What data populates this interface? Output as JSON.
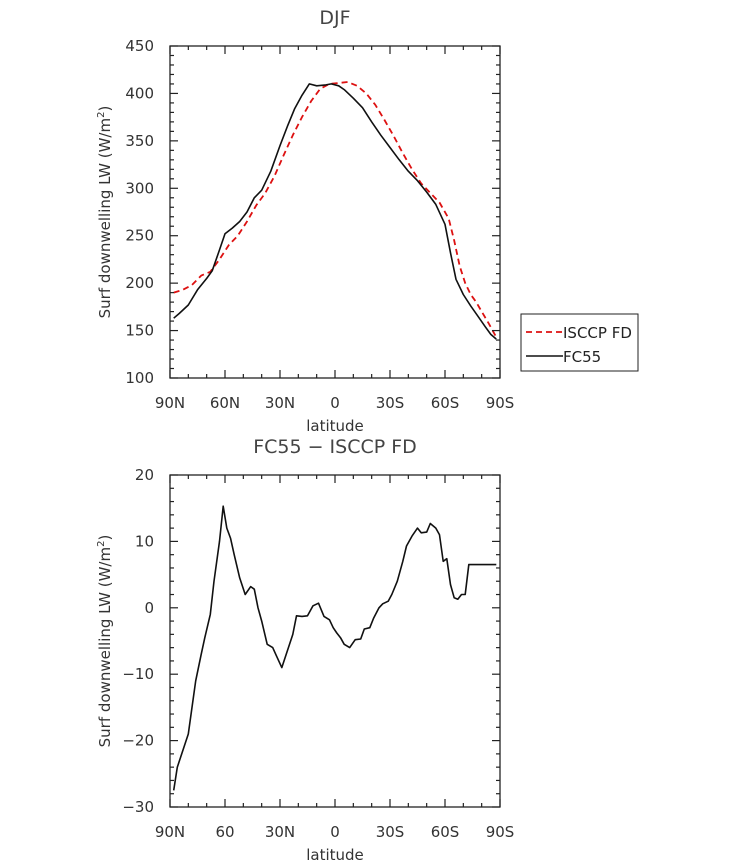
{
  "chart_data": [
    {
      "type": "line",
      "title": "DJF",
      "xlabel": "latitude",
      "ylabel": "Surf downwelling LW (W/m",
      "ylabel_sup": "2",
      "ylabel_close": ")",
      "xlim": [
        90,
        -90
      ],
      "ylim": [
        100,
        450
      ],
      "xticks": [
        90,
        60,
        30,
        0,
        -30,
        -60,
        -90
      ],
      "xtick_labels": [
        "90N",
        "60N",
        "30N",
        "0",
        "30S",
        "60S",
        "90S"
      ],
      "yticks": [
        100,
        150,
        200,
        250,
        300,
        350,
        400,
        450
      ],
      "ytick_labels": [
        "100",
        "150",
        "200",
        "250",
        "300",
        "350",
        "400",
        "450"
      ],
      "legend": "right",
      "series": [
        {
          "name": "ISCCP FD",
          "color": "#dd1111",
          "dash": "dashed",
          "x": [
            88,
            83,
            78,
            73,
            68,
            63,
            58,
            53,
            48,
            43,
            38,
            33,
            28,
            23,
            18,
            13,
            8,
            3,
            -2,
            -7,
            -12,
            -17,
            -22,
            -27,
            -32,
            -37,
            -42,
            -47,
            -52,
            -57,
            -62,
            -65,
            -68,
            -71,
            -74,
            -77,
            -80,
            -84,
            -88
          ],
          "y": [
            190,
            193,
            198,
            208,
            212,
            225,
            240,
            250,
            265,
            282,
            295,
            313,
            335,
            356,
            375,
            392,
            405,
            410,
            411,
            412,
            408,
            400,
            388,
            372,
            355,
            337,
            320,
            305,
            295,
            285,
            268,
            245,
            218,
            200,
            188,
            180,
            170,
            157,
            143
          ]
        },
        {
          "name": "FC55",
          "color": "#111111",
          "dash": "solid",
          "x": [
            88,
            85,
            80,
            75,
            70,
            67,
            63,
            60,
            56,
            52,
            48,
            44,
            40,
            35,
            30,
            26,
            22,
            18,
            14,
            10,
            5,
            2,
            -2,
            -5,
            -10,
            -15,
            -20,
            -25,
            -30,
            -35,
            -40,
            -45,
            -50,
            -55,
            -60,
            -63,
            -66,
            -70,
            -74,
            -78,
            -82,
            -85,
            -88
          ],
          "y": [
            163,
            168,
            177,
            193,
            205,
            213,
            235,
            252,
            258,
            265,
            275,
            290,
            298,
            318,
            345,
            365,
            384,
            398,
            410,
            408,
            409,
            410,
            408,
            404,
            395,
            385,
            370,
            356,
            343,
            330,
            318,
            308,
            296,
            283,
            262,
            232,
            204,
            188,
            176,
            165,
            154,
            146,
            141
          ]
        }
      ]
    },
    {
      "type": "line",
      "title": "FC55 − ISCCP FD",
      "xlabel": "latitude",
      "ylabel": "Surf downwelling LW (W/m",
      "ylabel_sup": "2",
      "ylabel_close": ")",
      "xlim": [
        90,
        -90
      ],
      "ylim": [
        -30,
        20
      ],
      "xticks": [
        90,
        60,
        30,
        0,
        -30,
        -60,
        -90
      ],
      "xtick_labels": [
        "90N",
        "60",
        "30N",
        "0",
        "30S",
        "60S",
        "90S"
      ],
      "yticks": [
        -30,
        -20,
        -10,
        0,
        10,
        20
      ],
      "ytick_labels": [
        "−30",
        "−20",
        "−10",
        "0",
        "10",
        "20"
      ],
      "series": [
        {
          "color": "#111111",
          "dash": "solid",
          "x": [
            88,
            86,
            80,
            78,
            76,
            73,
            71,
            68,
            66,
            63,
            61,
            59,
            57,
            55,
            52,
            49,
            46,
            44,
            42,
            40,
            37,
            34,
            32,
            29,
            26,
            23,
            21,
            18,
            15,
            12,
            9,
            6,
            3,
            1,
            -1,
            -3,
            -5,
            -8,
            -11,
            -14,
            -16,
            -19,
            -21,
            -24,
            -26,
            -29,
            -31,
            -34,
            -37,
            -39,
            -42,
            -45,
            -47,
            -50,
            -52,
            -55,
            -57,
            -59,
            -61,
            -63,
            -65,
            -67,
            -69,
            -71,
            -73,
            -75,
            -78,
            -80,
            -83,
            -88
          ],
          "y": [
            -27.5,
            -24,
            -19,
            -15,
            -11,
            -7,
            -4.5,
            -1,
            4,
            10,
            15.3,
            12,
            10.5,
            8,
            4.5,
            2,
            3.2,
            2.8,
            0,
            -2,
            -5.5,
            -6,
            -7.2,
            -9,
            -6.5,
            -4,
            -1.2,
            -1.3,
            -1.2,
            0.3,
            0.7,
            -1.3,
            -1.8,
            -3,
            -3.8,
            -4.5,
            -5.5,
            -6,
            -4.8,
            -4.7,
            -3.2,
            -3,
            -1.6,
            0,
            0.6,
            1,
            2,
            4,
            7,
            9.3,
            10.8,
            12,
            11.3,
            11.4,
            12.7,
            12,
            11,
            7,
            7.4,
            3.5,
            1.5,
            1.3,
            2,
            2,
            6.5,
            6.5,
            6.5,
            6.5,
            6.5,
            6.5
          ]
        }
      ]
    }
  ]
}
